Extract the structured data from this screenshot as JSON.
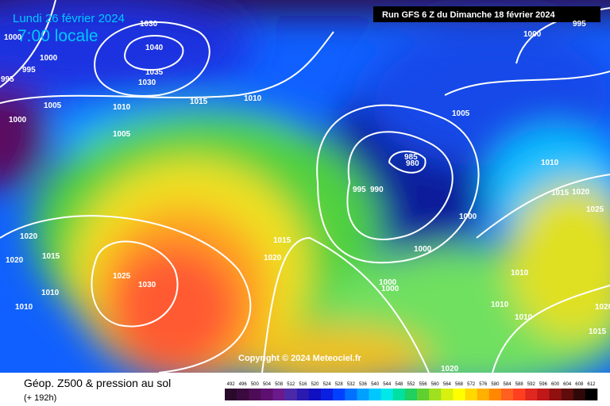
{
  "header": {
    "date": "Lundi 26 février 2024",
    "time": "7:00 locale",
    "run": "Run GFS 6 Z du Dimanche 18 février 2024"
  },
  "copyright": "Copyright © 2024 Meteociel.fr",
  "footer": {
    "title": "Géop. Z500 & pression au sol",
    "lead": "(+ 192h)"
  },
  "scale": [
    492,
    496,
    500,
    504,
    508,
    512,
    516,
    520,
    524,
    528,
    532,
    536,
    540,
    544,
    548,
    552,
    556,
    560,
    564,
    568,
    572,
    576,
    580,
    584,
    588,
    592,
    596,
    600,
    604,
    608,
    612
  ],
  "isobar_labels": [
    1000,
    1000,
    995,
    995,
    1030,
    1040,
    1035,
    1030,
    1010,
    1015,
    1010,
    1005,
    1000,
    1005,
    1000,
    995,
    1005,
    985,
    980,
    995,
    990,
    1010,
    1015,
    1020,
    1025,
    1000,
    1000,
    1015,
    1020,
    1020,
    1020,
    1015,
    1025,
    1030,
    1010,
    1010,
    1000,
    1000,
    1010,
    1010,
    1010,
    1020,
    1015,
    1020
  ]
}
